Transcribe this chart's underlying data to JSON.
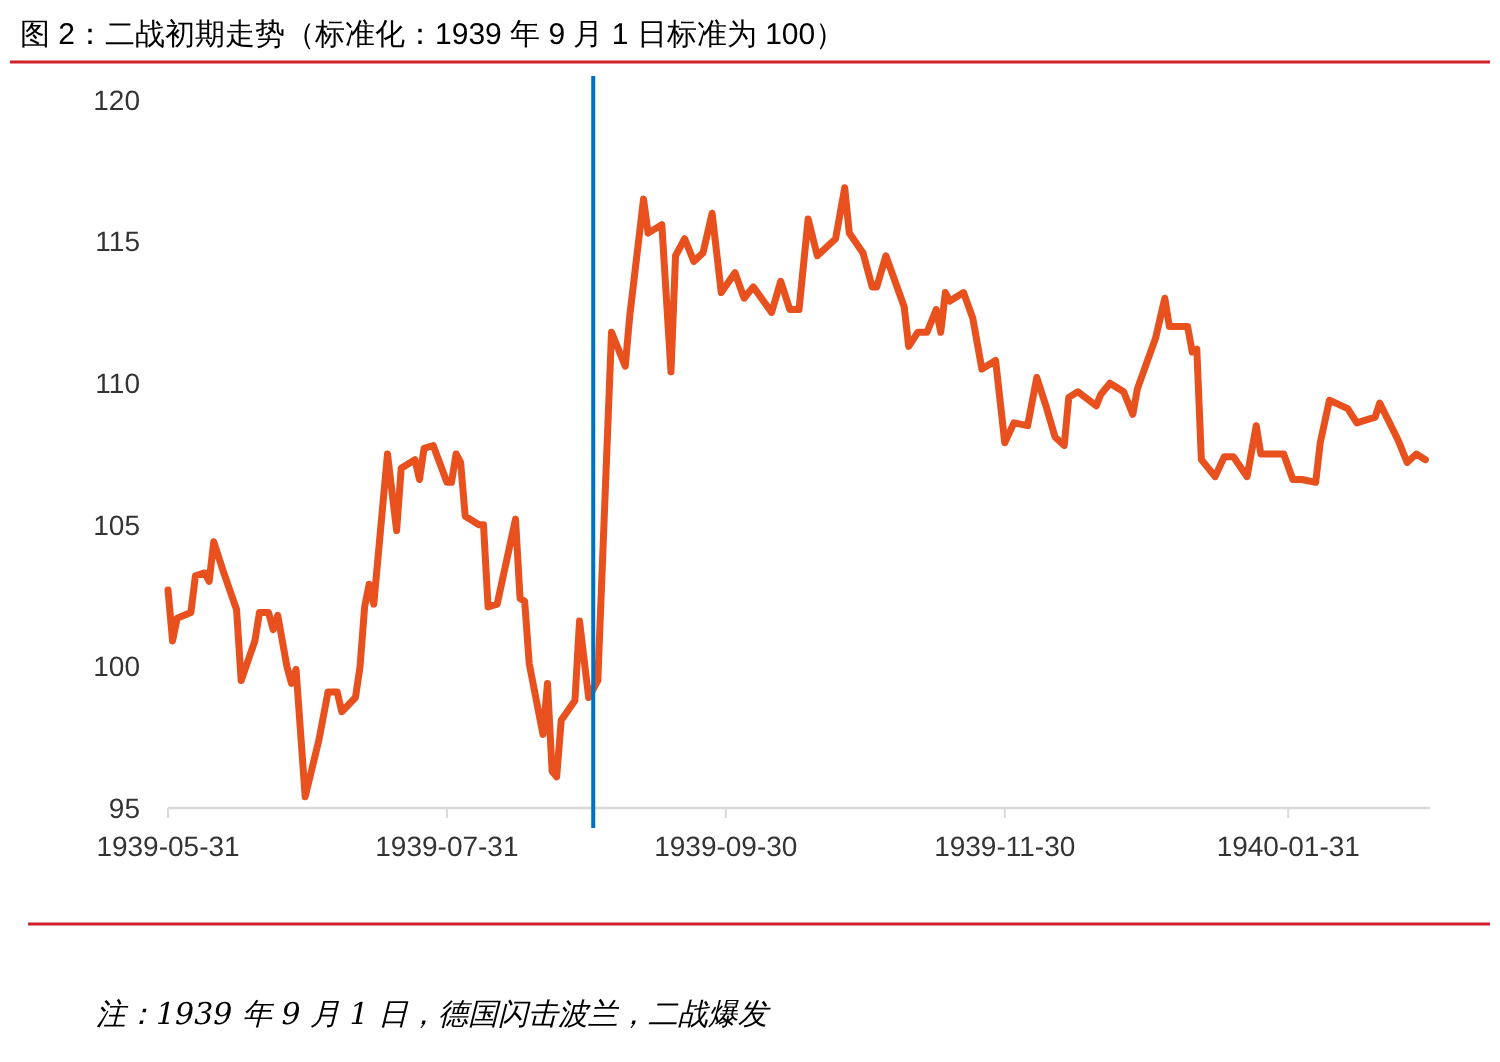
{
  "chart_data": {
    "type": "line",
    "title": "图 2：二战初期走势（标准化：1939 年 9 月 1 日标准为 100）",
    "annotations": [
      "注：1939 年 9 月 1 日，德国闪击波兰，二战爆发"
    ],
    "xlim": [
      "1939-05-31",
      "1940-03-02"
    ],
    "xticks": [
      "1939-05-31",
      "1939-07-31",
      "1939-09-30",
      "1939-11-30",
      "1940-01-31"
    ],
    "ylim": [
      95,
      120
    ],
    "yticks": [
      95,
      100,
      105,
      110,
      115,
      120
    ],
    "grid": false,
    "line_style": "solid",
    "ref_lines": [
      {
        "axis": "x",
        "value": "1939-09-01",
        "color": "#0070c0"
      }
    ],
    "series": [
      {
        "color": "#e8501e",
        "x": [
          "1939-05-31",
          "1939-06-01",
          "1939-06-02",
          "1939-06-05",
          "1939-06-06",
          "1939-06-08",
          "1939-06-09",
          "1939-06-10",
          "1939-06-12",
          "1939-06-15",
          "1939-06-16",
          "1939-06-19",
          "1939-06-20",
          "1939-06-22",
          "1939-06-23",
          "1939-06-24",
          "1939-06-26",
          "1939-06-27",
          "1939-06-28",
          "1939-06-30",
          "1939-07-03",
          "1939-07-05",
          "1939-07-07",
          "1939-07-08",
          "1939-07-11",
          "1939-07-12",
          "1939-07-13",
          "1939-07-14",
          "1939-07-15",
          "1939-07-18",
          "1939-07-20",
          "1939-07-21",
          "1939-07-24",
          "1939-07-25",
          "1939-07-26",
          "1939-07-28",
          "1939-07-31",
          "1939-08-01",
          "1939-08-02",
          "1939-08-03",
          "1939-08-04",
          "1939-08-07",
          "1939-08-08",
          "1939-08-09",
          "1939-08-11",
          "1939-08-15",
          "1939-08-16",
          "1939-08-17",
          "1939-08-18",
          "1939-08-21",
          "1939-08-22",
          "1939-08-23",
          "1939-08-24",
          "1939-08-25",
          "1939-08-28",
          "1939-08-29",
          "1939-08-31",
          "1939-09-02",
          "1939-09-05",
          "1939-09-08",
          "1939-09-09",
          "1939-09-12",
          "1939-09-13",
          "1939-09-16",
          "1939-09-18",
          "1939-09-19",
          "1939-09-21",
          "1939-09-23",
          "1939-09-25",
          "1939-09-27",
          "1939-09-29",
          "1939-10-02",
          "1939-10-04",
          "1939-10-06",
          "1939-10-10",
          "1939-10-12",
          "1939-10-14",
          "1939-10-16",
          "1939-10-18",
          "1939-10-20",
          "1939-10-24",
          "1939-10-26",
          "1939-10-27",
          "1939-10-30",
          "1939-11-01",
          "1939-11-02",
          "1939-11-04",
          "1939-11-08",
          "1939-11-09",
          "1939-11-11",
          "1939-11-13",
          "1939-11-15",
          "1939-11-16",
          "1939-11-17",
          "1939-11-18",
          "1939-11-21",
          "1939-11-23",
          "1939-11-25",
          "1939-11-28",
          "1939-11-30",
          "1939-12-02",
          "1939-12-05",
          "1939-12-07",
          "1939-12-09",
          "1939-12-11",
          "1939-12-13",
          "1939-12-14",
          "1939-12-16",
          "1939-12-20",
          "1939-12-21",
          "1939-12-23",
          "1939-12-26",
          "1939-12-28",
          "1939-12-29",
          "1940-01-02",
          "1940-01-04",
          "1940-01-05",
          "1940-01-09",
          "1940-01-10",
          "1940-01-11",
          "1940-01-12",
          "1940-01-15",
          "1940-01-17",
          "1940-01-19",
          "1940-01-22",
          "1940-01-24",
          "1940-01-25",
          "1940-01-30",
          "1940-02-01",
          "1940-02-03",
          "1940-02-06",
          "1940-02-07",
          "1940-02-09",
          "1940-02-13",
          "1940-02-15",
          "1940-02-19",
          "1940-02-20",
          "1940-02-24",
          "1940-02-26",
          "1940-02-28",
          "1940-03-01"
        ],
        "values": [
          102.7,
          100.9,
          101.7,
          101.9,
          103.2,
          103.3,
          103.0,
          104.4,
          103.4,
          102.0,
          99.5,
          100.9,
          101.9,
          101.9,
          101.3,
          101.8,
          100.0,
          99.4,
          99.9,
          95.4,
          97.4,
          99.1,
          99.1,
          98.4,
          98.9,
          100.0,
          102.1,
          102.9,
          102.2,
          107.5,
          104.8,
          107.0,
          107.3,
          106.6,
          107.7,
          107.8,
          106.5,
          106.5,
          107.5,
          107.2,
          105.3,
          105.0,
          105.0,
          102.1,
          102.2,
          105.2,
          102.4,
          102.3,
          100.1,
          97.6,
          99.4,
          96.3,
          96.1,
          98.1,
          98.8,
          101.6,
          98.9,
          99.5,
          111.8,
          110.6,
          112.4,
          116.5,
          115.3,
          115.6,
          110.4,
          114.5,
          115.1,
          114.3,
          114.6,
          116.0,
          113.2,
          113.9,
          113.0,
          113.4,
          112.5,
          113.6,
          112.6,
          112.6,
          115.8,
          114.5,
          115.1,
          116.9,
          115.3,
          114.6,
          113.4,
          113.4,
          114.5,
          112.7,
          111.3,
          111.8,
          111.8,
          112.6,
          111.8,
          113.2,
          112.9,
          113.2,
          112.3,
          110.5,
          110.8,
          107.9,
          108.6,
          108.5,
          110.2,
          109.2,
          108.1,
          107.8,
          109.5,
          109.7,
          109.2,
          109.6,
          110.0,
          109.7,
          108.9,
          109.8,
          111.6,
          113.0,
          112.0,
          112.0,
          111.1,
          111.2,
          107.3,
          106.7,
          107.4,
          107.4,
          106.7,
          108.5,
          107.5,
          107.5,
          106.6,
          106.6,
          106.5,
          107.9,
          109.4,
          109.1,
          108.6,
          108.8,
          109.3,
          108.0,
          107.2,
          107.5,
          107.3
        ]
      }
    ]
  }
}
